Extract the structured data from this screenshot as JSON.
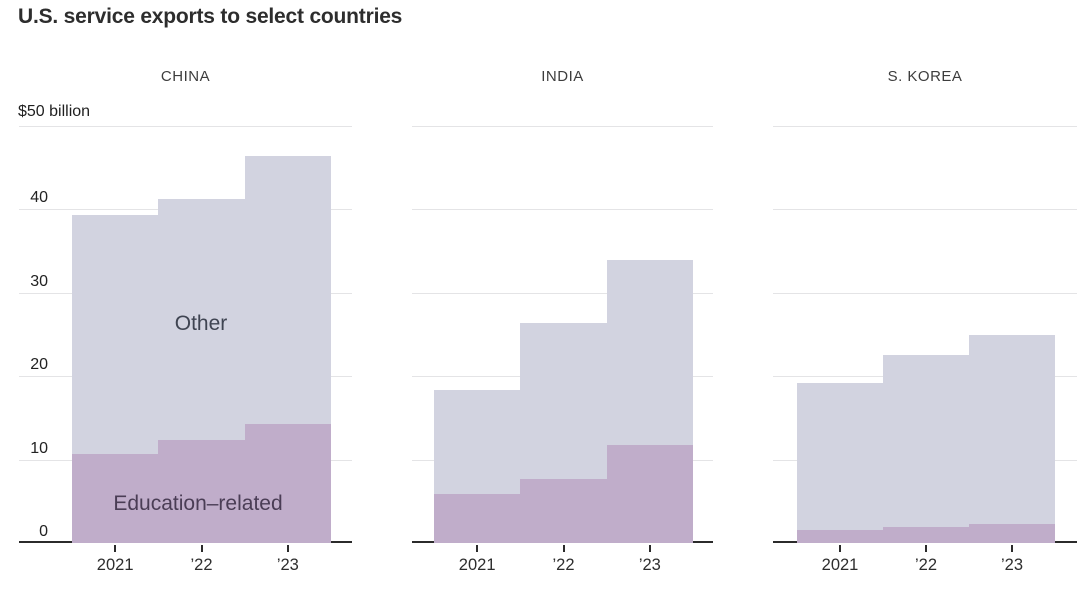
{
  "title": "U.S. service exports to select countries",
  "chart_data": {
    "type": "area",
    "variant": "stacked step-area, three small-multiple panels sharing one y-axis",
    "unit_label": "$50 billion",
    "ylim": [
      0,
      50
    ],
    "y_gridline_values": [
      50,
      40,
      30,
      20,
      10
    ],
    "y_tick_labels": [
      "40",
      "30",
      "20",
      "10",
      "0"
    ],
    "categories": [
      "2021",
      "’22",
      "’23"
    ],
    "grid": true,
    "legend_position": "series labels written inside first panel",
    "series_labels": {
      "other": "Other",
      "education": "Education–related"
    },
    "colors": {
      "other": "#d2d3e0",
      "education": "#c0adca",
      "gridline": "#e4e4e6",
      "axis": "#2b2b2b"
    },
    "panels": [
      {
        "label": "CHINA",
        "total": [
          39.3,
          41.3,
          46.4
        ],
        "education": [
          10.7,
          12.3,
          14.3
        ],
        "other": [
          28.6,
          29.0,
          32.1
        ]
      },
      {
        "label": "INDIA",
        "total": [
          18.3,
          26.4,
          33.9
        ],
        "education": [
          5.9,
          7.7,
          11.8
        ],
        "other": [
          12.4,
          18.7,
          22.1
        ]
      },
      {
        "label": "S. KOREA",
        "total": [
          19.2,
          22.6,
          24.9
        ],
        "education": [
          1.6,
          1.9,
          2.3
        ],
        "other": [
          17.6,
          20.7,
          22.6
        ]
      }
    ]
  }
}
